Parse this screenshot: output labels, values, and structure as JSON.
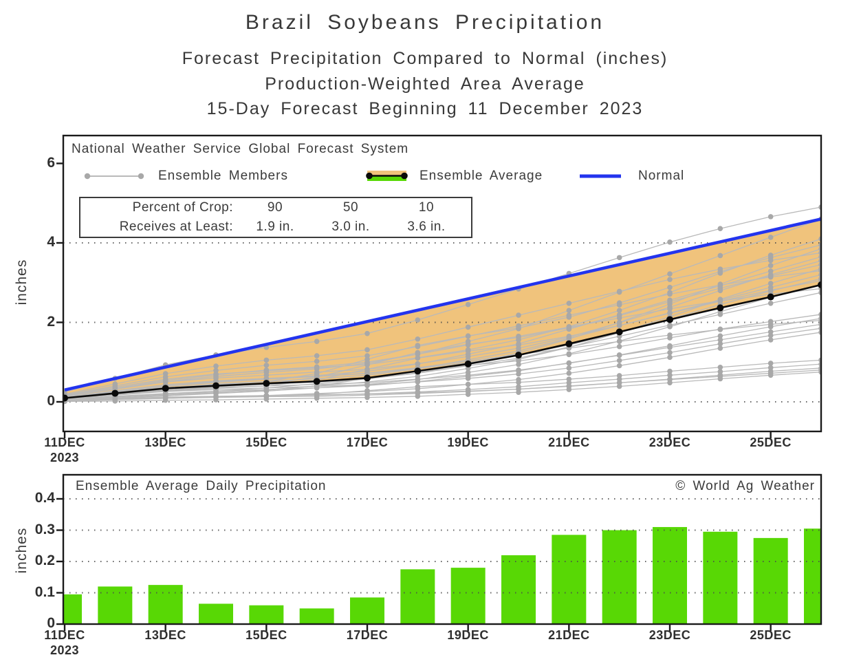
{
  "title": {
    "line1": "Brazil Soybeans Precipitation",
    "line2": "Forecast Precipitation Compared to Normal (inches)",
    "line3": "Production-Weighted Area Average",
    "line4": "15-Day Forecast Beginning 11 December 2023"
  },
  "colors": {
    "band_orange": "#f0c37c",
    "normal_blue": "#2334ee",
    "bar_green": "#58d805",
    "member_line_gray": "#b9b9b9",
    "member_dot_gray": "#a8a8a8",
    "average_black": "#0a0a0a",
    "axis_black": "#1a1a1a",
    "grid_dot": "#4a4a4a"
  },
  "top_chart": {
    "legend": {
      "source": "National Weather Service Global Forecast System",
      "members_label": "Ensemble Members",
      "average_label": "Ensemble Average",
      "normal_label": "Normal"
    },
    "stats_box": {
      "row1_label": "Percent of Crop:",
      "row2_label": "Receives at Least:",
      "percents": [
        "90",
        "50",
        "10"
      ],
      "amounts": [
        "1.9 in.",
        "3.0 in.",
        "3.6 in."
      ]
    },
    "y_axis_label": "inches",
    "y_ticks": [
      {
        "v": 0,
        "label": "0"
      },
      {
        "v": 2,
        "label": "2"
      },
      {
        "v": 4,
        "label": "4"
      },
      {
        "v": 6,
        "label": "6"
      }
    ],
    "grid_y": [
      0,
      2,
      4
    ],
    "x_ticks": [
      {
        "day": 0,
        "label": "11DEC"
      },
      {
        "day": 2,
        "label": "13DEC"
      },
      {
        "day": 4,
        "label": "15DEC"
      },
      {
        "day": 6,
        "label": "17DEC"
      },
      {
        "day": 8,
        "label": "19DEC"
      },
      {
        "day": 10,
        "label": "21DEC"
      },
      {
        "day": 12,
        "label": "23DEC"
      },
      {
        "day": 14,
        "label": "25DEC"
      }
    ],
    "x_year": "2023"
  },
  "bottom_chart": {
    "header": "Ensemble Average Daily Precipitation",
    "copyright": "© World Ag Weather",
    "y_axis_label": "inches",
    "y_ticks": [
      {
        "v": 0,
        "label": "0"
      },
      {
        "v": 0.1,
        "label": "0.1"
      },
      {
        "v": 0.2,
        "label": "0.2"
      },
      {
        "v": 0.3,
        "label": "0.3"
      },
      {
        "v": 0.4,
        "label": "0.4"
      }
    ],
    "grid_y": [
      0.1,
      0.2,
      0.3,
      0.4
    ],
    "x_year": "2023"
  },
  "chart_data": [
    {
      "type": "line",
      "name": "accumulated-precipitation-vs-normal",
      "ylabel": "inches",
      "ylim": [
        -0.75,
        6.7
      ],
      "x": [
        "11DEC",
        "12DEC",
        "13DEC",
        "14DEC",
        "15DEC",
        "16DEC",
        "17DEC",
        "18DEC",
        "19DEC",
        "20DEC",
        "21DEC",
        "22DEC",
        "23DEC",
        "24DEC",
        "25DEC",
        "26DEC"
      ],
      "series": [
        {
          "name": "Normal",
          "color": "#2334ee",
          "values": [
            0.3,
            0.59,
            0.87,
            1.16,
            1.45,
            1.73,
            2.02,
            2.31,
            2.59,
            2.88,
            3.17,
            3.45,
            3.74,
            4.03,
            4.31,
            4.6
          ]
        },
        {
          "name": "Ensemble Average",
          "color": "#0a0a0a",
          "values": [
            0.095,
            0.215,
            0.34,
            0.405,
            0.465,
            0.515,
            0.6,
            0.775,
            0.955,
            1.175,
            1.46,
            1.76,
            2.07,
            2.365,
            2.64,
            2.945
          ]
        }
      ],
      "band_between": [
        "Ensemble Average",
        "Normal"
      ],
      "members": [
        [
          0.01,
          0.02,
          0.04,
          0.05,
          0.07,
          0.09,
          0.11,
          0.14,
          0.19,
          0.24,
          0.31,
          0.39,
          0.48,
          0.58,
          0.67,
          0.75
        ],
        [
          0.03,
          0.08,
          0.12,
          0.14,
          0.16,
          0.18,
          0.2,
          0.23,
          0.27,
          0.32,
          0.39,
          0.48,
          0.57,
          0.67,
          0.77,
          0.85
        ],
        [
          0.02,
          0.06,
          0.09,
          0.11,
          0.13,
          0.14,
          0.17,
          0.21,
          0.26,
          0.32,
          0.4,
          0.48,
          0.56,
          0.64,
          0.72,
          0.8
        ],
        [
          0.03,
          0.07,
          0.1,
          0.13,
          0.15,
          0.17,
          0.2,
          0.25,
          0.31,
          0.38,
          0.48,
          0.57,
          0.67,
          0.76,
          0.86,
          0.95
        ],
        [
          0.02,
          0.06,
          0.09,
          0.12,
          0.14,
          0.19,
          0.28,
          0.38,
          0.44,
          0.49,
          0.57,
          0.66,
          0.77,
          0.87,
          0.97,
          1.05
        ],
        [
          0.02,
          0.05,
          0.09,
          0.12,
          0.16,
          0.21,
          0.26,
          0.33,
          0.44,
          0.56,
          0.72,
          0.91,
          1.12,
          1.35,
          1.56,
          1.75
        ],
        [
          0.07,
          0.17,
          0.26,
          0.31,
          0.35,
          0.39,
          0.43,
          0.5,
          0.59,
          0.7,
          0.85,
          1.04,
          1.24,
          1.46,
          1.67,
          1.85
        ],
        [
          0.06,
          0.14,
          0.21,
          0.27,
          0.31,
          0.35,
          0.41,
          0.51,
          0.64,
          0.78,
          0.98,
          1.17,
          1.37,
          1.56,
          1.76,
          1.95
        ],
        [
          0.1,
          0.25,
          0.39,
          0.49,
          0.57,
          0.64,
          0.72,
          0.86,
          1.03,
          1.19,
          1.35,
          1.52,
          1.68,
          1.82,
          1.95,
          2.05
        ],
        [
          0.08,
          0.19,
          0.29,
          0.36,
          0.4,
          0.44,
          0.48,
          0.57,
          0.67,
          0.8,
          0.97,
          1.18,
          1.41,
          1.66,
          1.89,
          2.1
        ],
        [
          0.04,
          0.13,
          0.2,
          0.24,
          0.29,
          0.4,
          0.59,
          0.79,
          0.92,
          1.03,
          1.19,
          1.39,
          1.61,
          1.83,
          2.02,
          2.2
        ],
        [
          0.08,
          0.19,
          0.3,
          0.39,
          0.44,
          0.5,
          0.58,
          0.72,
          0.91,
          1.1,
          1.38,
          1.65,
          1.93,
          2.2,
          2.48,
          2.75
        ],
        [
          0.14,
          0.34,
          0.54,
          0.68,
          0.8,
          0.88,
          1.0,
          1.2,
          1.43,
          1.65,
          1.88,
          2.11,
          2.34,
          2.54,
          2.71,
          2.85
        ],
        [
          0.03,
          0.09,
          0.15,
          0.21,
          0.27,
          0.35,
          0.44,
          0.56,
          0.74,
          0.94,
          1.21,
          1.53,
          1.89,
          2.27,
          2.63,
          2.95
        ],
        [
          0.06,
          0.18,
          0.27,
          0.34,
          0.4,
          0.55,
          0.82,
          1.1,
          1.28,
          1.43,
          1.65,
          1.92,
          2.23,
          2.53,
          2.81,
          3.05
        ],
        [
          0.12,
          0.28,
          0.43,
          0.53,
          0.59,
          0.65,
          0.71,
          0.84,
          0.99,
          1.18,
          1.43,
          1.74,
          2.08,
          2.45,
          2.79,
          3.1
        ],
        [
          0.1,
          0.22,
          0.35,
          0.45,
          0.51,
          0.58,
          0.67,
          0.83,
          1.06,
          1.28,
          1.6,
          1.92,
          2.24,
          2.56,
          2.88,
          3.2
        ],
        [
          0.17,
          0.4,
          0.63,
          0.79,
          0.92,
          1.02,
          1.16,
          1.39,
          1.65,
          1.91,
          2.18,
          2.44,
          2.71,
          2.94,
          3.14,
          3.3
        ],
        [
          0.03,
          0.1,
          0.17,
          0.23,
          0.3,
          0.4,
          0.5,
          0.64,
          0.84,
          1.07,
          1.37,
          1.74,
          2.14,
          2.58,
          2.98,
          3.35
        ],
        [
          0.07,
          0.21,
          0.31,
          0.38,
          0.45,
          0.62,
          0.93,
          1.24,
          1.45,
          1.62,
          1.86,
          2.17,
          2.52,
          2.86,
          3.17,
          3.45
        ],
        [
          0.14,
          0.32,
          0.5,
          0.6,
          0.67,
          0.75,
          0.82,
          0.96,
          1.14,
          1.35,
          1.63,
          1.99,
          2.38,
          2.8,
          3.2,
          3.55
        ],
        [
          0.11,
          0.26,
          0.4,
          0.51,
          0.58,
          0.66,
          0.77,
          0.95,
          1.2,
          1.46,
          1.83,
          2.19,
          2.56,
          2.92,
          3.29,
          3.65
        ],
        [
          0.19,
          0.45,
          0.71,
          0.9,
          1.05,
          1.16,
          1.31,
          1.58,
          1.88,
          2.18,
          2.48,
          2.78,
          3.08,
          3.34,
          3.56,
          3.75
        ],
        [
          0.04,
          0.12,
          0.19,
          0.27,
          0.35,
          0.46,
          0.58,
          0.73,
          0.96,
          1.23,
          1.58,
          2.0,
          2.46,
          2.96,
          3.43,
          3.85
        ],
        [
          0.08,
          0.24,
          0.36,
          0.43,
          0.51,
          0.71,
          1.07,
          1.42,
          1.66,
          1.86,
          2.13,
          2.49,
          2.88,
          3.28,
          3.63,
          3.95
        ],
        [
          0.16,
          0.37,
          0.57,
          0.7,
          0.78,
          0.86,
          0.94,
          1.11,
          1.31,
          1.56,
          1.89,
          2.3,
          2.75,
          3.24,
          3.69,
          4.1
        ],
        [
          0.14,
          0.32,
          0.51,
          0.64,
          0.74,
          0.83,
          0.97,
          1.2,
          1.52,
          1.84,
          2.3,
          2.76,
          3.22,
          3.68,
          4.14,
          4.6
        ],
        [
          0.25,
          0.59,
          0.93,
          1.18,
          1.37,
          1.52,
          1.72,
          2.06,
          2.45,
          2.84,
          3.23,
          3.63,
          4.02,
          4.36,
          4.66,
          4.9
        ]
      ]
    },
    {
      "type": "bar",
      "name": "ensemble-average-daily-precipitation",
      "title": "Ensemble Average Daily Precipitation",
      "ylabel": "inches",
      "ylim": [
        0,
        0.477
      ],
      "categories": [
        "11DEC",
        "12DEC",
        "13DEC",
        "14DEC",
        "15DEC",
        "16DEC",
        "17DEC",
        "18DEC",
        "19DEC",
        "20DEC",
        "21DEC",
        "22DEC",
        "23DEC",
        "24DEC",
        "25DEC",
        "26DEC"
      ],
      "values": [
        0.095,
        0.12,
        0.125,
        0.065,
        0.06,
        0.05,
        0.085,
        0.175,
        0.18,
        0.22,
        0.285,
        0.3,
        0.31,
        0.295,
        0.275,
        0.305
      ]
    }
  ]
}
